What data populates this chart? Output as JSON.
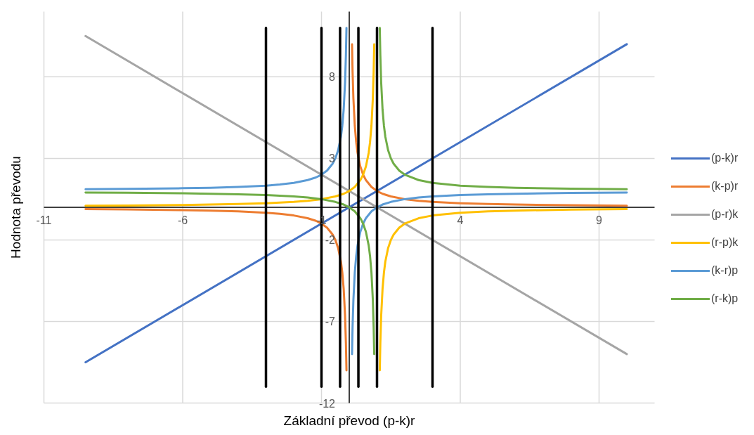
{
  "chart_data": {
    "type": "line",
    "xlabel": "Základní převod (p-k)r",
    "ylabel": "Hodnota převodu",
    "xlim": [
      -11,
      11
    ],
    "xticks": [
      -11,
      -6,
      -1,
      4,
      9
    ],
    "ylim": [
      -12,
      12
    ],
    "yticks": [
      -12,
      -7,
      -2,
      3,
      8
    ],
    "grid": true,
    "legend": "right",
    "line_style": "solid",
    "series": [
      {
        "name": "(p-k)r",
        "color": "#4472c4",
        "x": [
          -9.5,
          10
        ],
        "values": [
          -9.5,
          10
        ]
      },
      {
        "name": "(k-p)r",
        "color": "#ed7d31",
        "x": [
          -9.5,
          -8,
          -6,
          -5,
          -4,
          -3,
          -2.5,
          -2,
          -1.5,
          -1.2,
          -1,
          -0.8,
          -0.6,
          -0.5,
          -0.4,
          -0.3,
          -0.25,
          -0.2,
          -0.15,
          -0.12,
          -0.1,
          0,
          0.1,
          0.12,
          0.15,
          0.2,
          0.25,
          0.3,
          0.4,
          0.5,
          0.6,
          0.8,
          1,
          1.2,
          1.5,
          2,
          2.5,
          3,
          4,
          5,
          6,
          8,
          10
        ],
        "values": [
          -0.11,
          -0.13,
          -0.17,
          -0.2,
          -0.25,
          -0.33,
          -0.4,
          -0.5,
          -0.67,
          -0.83,
          -1,
          -1.25,
          -1.67,
          -2,
          -2.5,
          -3.33,
          -4,
          -5,
          -6.67,
          -8.33,
          -10,
          null,
          10,
          8.33,
          6.67,
          5,
          4,
          3.33,
          2.5,
          2,
          1.67,
          1.25,
          1,
          0.83,
          0.67,
          0.5,
          0.4,
          0.33,
          0.25,
          0.2,
          0.17,
          0.13,
          0.1
        ]
      },
      {
        "name": "(p-r)k",
        "color": "#a5a5a5",
        "x": [
          -9.5,
          10
        ],
        "values": [
          10.5,
          -9
        ]
      },
      {
        "name": "(r-p)k",
        "color": "#ffc000",
        "x": [
          -9.5,
          -8,
          -6,
          -5,
          -4,
          -3,
          -2,
          -1.5,
          -1,
          -0.5,
          -0.2,
          0,
          0.2,
          0.4,
          0.5,
          0.6,
          0.7,
          0.75,
          0.8,
          0.85,
          0.88,
          0.9,
          1,
          1.1,
          1.12,
          1.15,
          1.2,
          1.25,
          1.3,
          1.4,
          1.5,
          1.6,
          1.8,
          2,
          2.5,
          3,
          4,
          5,
          6,
          8,
          10
        ],
        "values": [
          0.1,
          0.11,
          0.14,
          0.17,
          0.2,
          0.25,
          0.33,
          0.4,
          0.5,
          0.67,
          0.83,
          1,
          1.25,
          1.67,
          2,
          2.5,
          3.33,
          4,
          5,
          6.67,
          8.33,
          10,
          null,
          -10,
          -8.33,
          -6.67,
          -5,
          -4,
          -3.33,
          -2.5,
          -2,
          -1.67,
          -1.25,
          -1,
          -0.67,
          -0.5,
          -0.33,
          -0.25,
          -0.2,
          -0.14,
          -0.11
        ]
      },
      {
        "name": "(k-r)p",
        "color": "#5b9bd5",
        "x": [
          -9.5,
          -8,
          -6,
          -5,
          -4,
          -3,
          -2.5,
          -2,
          -1.5,
          -1.2,
          -1,
          -0.8,
          -0.6,
          -0.5,
          -0.4,
          -0.3,
          -0.25,
          -0.2,
          -0.15,
          -0.12,
          -0.1,
          0,
          0.1,
          0.12,
          0.15,
          0.2,
          0.25,
          0.3,
          0.4,
          0.5,
          0.6,
          0.8,
          1,
          1.2,
          1.5,
          2,
          2.5,
          3,
          4,
          5,
          6,
          8,
          10
        ],
        "values": [
          1.11,
          1.13,
          1.17,
          1.2,
          1.25,
          1.33,
          1.4,
          1.5,
          1.67,
          1.83,
          2,
          2.25,
          2.67,
          3,
          3.5,
          4.33,
          5,
          6,
          7.67,
          9.33,
          11,
          null,
          -9,
          -7.33,
          -5.67,
          -4,
          -3,
          -2.33,
          -1.5,
          -1,
          -0.67,
          -0.25,
          0,
          0.17,
          0.33,
          0.5,
          0.6,
          0.67,
          0.75,
          0.8,
          0.83,
          0.88,
          0.9
        ]
      },
      {
        "name": "(r-k)p",
        "color": "#70ad47",
        "x": [
          -9.5,
          -8,
          -6,
          -5,
          -4,
          -3,
          -2,
          -1.5,
          -1,
          -0.5,
          -0.2,
          0,
          0.2,
          0.4,
          0.5,
          0.6,
          0.7,
          0.75,
          0.8,
          0.85,
          0.88,
          0.9,
          1,
          1.1,
          1.12,
          1.15,
          1.2,
          1.25,
          1.3,
          1.4,
          1.5,
          1.6,
          1.8,
          2,
          2.5,
          3,
          4,
          5,
          6,
          8,
          10
        ],
        "values": [
          0.9,
          0.89,
          0.86,
          0.83,
          0.8,
          0.75,
          0.67,
          0.6,
          0.5,
          0.33,
          0.17,
          0,
          -0.25,
          -0.67,
          -1,
          -1.5,
          -2.33,
          -3,
          -4,
          -5.67,
          -7.33,
          -9,
          null,
          11,
          9.33,
          7.67,
          6,
          5,
          4.33,
          3.5,
          3,
          2.67,
          2.25,
          2,
          1.67,
          1.5,
          1.33,
          1.25,
          1.2,
          1.14,
          1.11
        ]
      },
      {
        "color": "#000000",
        "x": [
          -3,
          -3
        ],
        "values": [
          -11,
          11
        ]
      },
      {
        "color": "#000000",
        "x": [
          -1,
          -1
        ],
        "values": [
          -11,
          11
        ]
      },
      {
        "color": "#000000",
        "x": [
          -0.33,
          -0.33
        ],
        "values": [
          -11,
          11
        ]
      },
      {
        "color": "#000000",
        "x": [
          0.33,
          0.33
        ],
        "values": [
          -11,
          11
        ]
      },
      {
        "color": "#000000",
        "x": [
          1,
          1
        ],
        "values": [
          -11,
          11
        ]
      },
      {
        "color": "#000000",
        "x": [
          3,
          3
        ],
        "values": [
          -11,
          11
        ]
      }
    ]
  }
}
